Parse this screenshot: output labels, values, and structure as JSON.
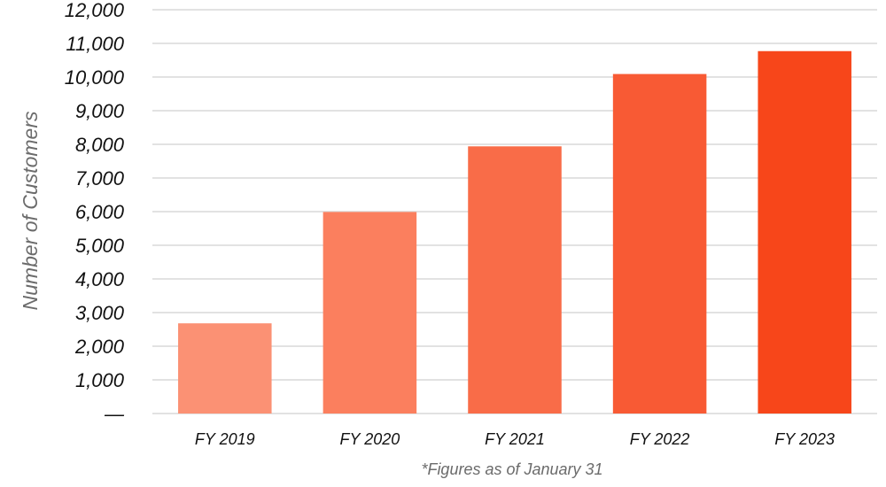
{
  "chart_data": {
    "type": "bar",
    "categories": [
      "FY 2019",
      "FY 2020",
      "FY 2021",
      "FY 2022",
      "FY 2023"
    ],
    "values": [
      2680,
      5990,
      7940,
      10090,
      10770
    ],
    "colors": [
      "#FB9174",
      "#FB7F5E",
      "#F96C48",
      "#F85A34",
      "#F7461A"
    ],
    "ylabel": "Number of Customers",
    "ylim": [
      0,
      12000
    ],
    "yticks": [
      {
        "value": 0,
        "label": "—"
      },
      {
        "value": 1000,
        "label": "1,000"
      },
      {
        "value": 2000,
        "label": "2,000"
      },
      {
        "value": 3000,
        "label": "3,000"
      },
      {
        "value": 4000,
        "label": "4,000"
      },
      {
        "value": 5000,
        "label": "5,000"
      },
      {
        "value": 6000,
        "label": "6,000"
      },
      {
        "value": 7000,
        "label": "7,000"
      },
      {
        "value": 8000,
        "label": "8,000"
      },
      {
        "value": 9000,
        "label": "9,000"
      },
      {
        "value": 10000,
        "label": "10,000"
      },
      {
        "value": 11000,
        "label": "11,000"
      },
      {
        "value": 12000,
        "label": "12,000"
      }
    ],
    "grid": true,
    "footnote": "*Figures as of January 31"
  }
}
